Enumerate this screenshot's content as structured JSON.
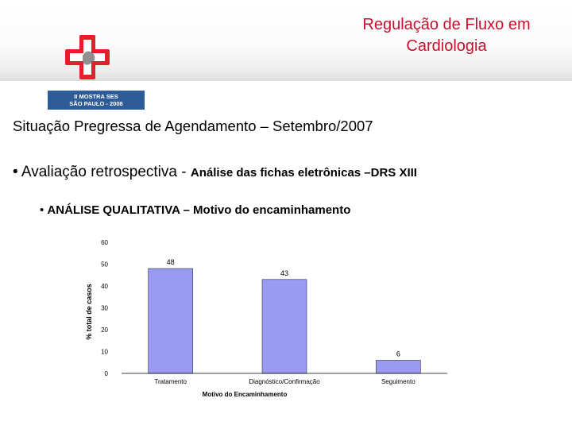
{
  "header": {
    "title_line1": "Regulação de Fluxo em",
    "title_line2": "Cardiologia",
    "logo_caption_line1": "II MOSTRA SES",
    "logo_caption_line2": "SÃO PAULO - 2008"
  },
  "content": {
    "heading": "Situação Pregressa de Agendamento – Setembro/2007",
    "bullet1_main": "• Avaliação retrospectiva - ",
    "bullet1_small": "Análise das fichas eletrônicas –DRS XIII",
    "bullet2_dot": "• ",
    "bullet2": "ANÁLISE QUALITATIVA – Motivo do encaminhamento"
  },
  "colors": {
    "accent_red": "#c8102e",
    "bar_fill": "#9a9af2",
    "logo_blue": "#2d5c99"
  },
  "chart_data": {
    "type": "bar",
    "categories": [
      "Tratamento",
      "Diagnóstico/Confirmação",
      "Seguimento"
    ],
    "values": [
      48,
      43,
      6
    ],
    "data_labels": [
      "48",
      "43",
      "6"
    ],
    "xlabel": "Motivo do Encaminhamento",
    "ylabel": "% total de casos",
    "ylim": [
      0,
      60
    ],
    "yticks": [
      0,
      10,
      20,
      30,
      40,
      50,
      60
    ],
    "ytick_labels": [
      "0",
      "10",
      "20",
      "30",
      "40",
      "50",
      "60"
    ],
    "grid": false,
    "legend": "none"
  }
}
